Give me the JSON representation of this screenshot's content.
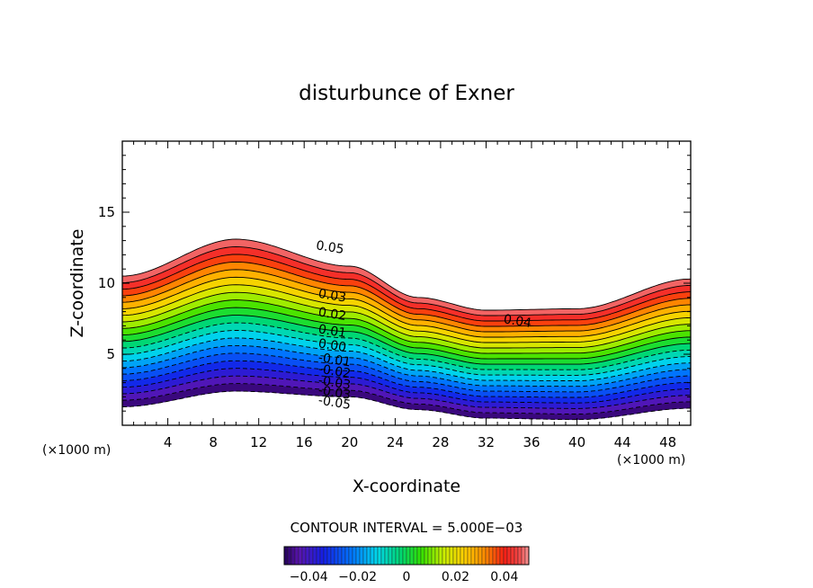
{
  "chart_data": {
    "type": "filled-contour",
    "title": "disturbunce of Exner",
    "xlabel": "X-coordinate",
    "ylabel": "Z-coordinate",
    "x_unit_label": "(×1000 m)",
    "xlim": [
      0,
      50
    ],
    "ylim": [
      0,
      20
    ],
    "x_ticks": [
      "4",
      "8",
      "12",
      "16",
      "20",
      "24",
      "28",
      "32",
      "36",
      "40",
      "44",
      "48"
    ],
    "y_ticks": [
      "5",
      "10",
      "15"
    ],
    "contour_interval_label": "CONTOUR INTERVAL = 5.000E−03",
    "contour_interval": 0.005,
    "value_range": [
      -0.05,
      0.05
    ],
    "terrain_x": [
      0,
      10,
      20,
      26,
      32,
      40,
      50
    ],
    "field_top_z": [
      10.5,
      13.1,
      11.2,
      9.0,
      8.1,
      8.2,
      10.3
    ],
    "field_bottom_z": [
      1.3,
      2.4,
      2.0,
      1.1,
      0.5,
      0.4,
      1.2
    ],
    "contour_labels": [
      {
        "text": "0.05",
        "x": 17,
        "z": 12.4
      },
      {
        "text": "0.04",
        "x": 33.5,
        "z": 7.2
      },
      {
        "text": "0.03",
        "x": 17.2,
        "z": 9.0
      },
      {
        "text": "0.02",
        "x": 17.2,
        "z": 7.7
      },
      {
        "text": "0.01",
        "x": 17.2,
        "z": 6.5
      },
      {
        "text": "0.00",
        "x": 17.2,
        "z": 5.5
      },
      {
        "text": "-0.01",
        "x": 17.2,
        "z": 4.5
      },
      {
        "text": "-0.02",
        "x": 17.2,
        "z": 3.7
      },
      {
        "text": "-0.03",
        "x": 17.2,
        "z": 2.9
      },
      {
        "text": "-0.03",
        "x": 17.2,
        "z": 2.2
      },
      {
        "text": "-0.05",
        "x": 17.2,
        "z": 1.5
      }
    ],
    "colorbar_ticks": [
      "−0.04",
      "−0.02",
      "0",
      "0.02",
      "0.04"
    ],
    "colorbar_values": [
      -0.04,
      -0.02,
      0,
      0.02,
      0.04
    ]
  }
}
